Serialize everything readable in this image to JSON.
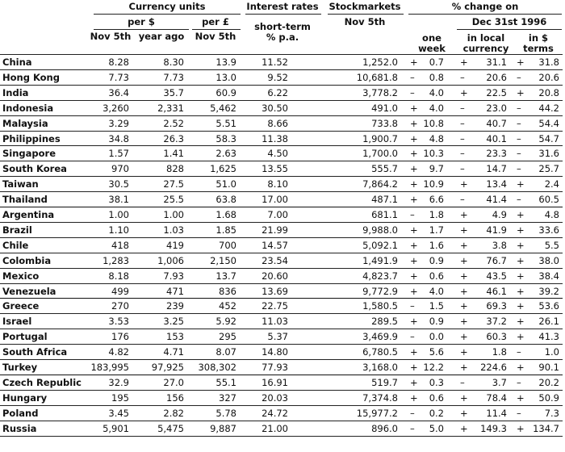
{
  "headers": {
    "currency_units": "Currency units",
    "per_dollar": "per $",
    "per_pound": "per £",
    "nov5": "Nov 5th",
    "year_ago": "year ago",
    "nov5_pound": "Nov 5th",
    "interest_rates": "Interest rates",
    "short_term": "short-term",
    "pct_pa": "% p.a.",
    "stockmarkets": "Stockmarkets",
    "stock_nov5": "Nov 5th",
    "pct_change_on": "% change on",
    "one": "one",
    "week": "week",
    "dec31": "Dec 31st 1996",
    "in_local": "in local",
    "currency": "currency",
    "in_dollar": "in $",
    "terms": "terms"
  },
  "rows": [
    {
      "name": "China",
      "nov5": "8.28",
      "year_ago": "8.30",
      "per_pound": "13.9",
      "rate": "11.52",
      "stock": "1,252.0",
      "wk_sign": "+",
      "wk": "0.7",
      "loc_sign": "+",
      "loc": "31.1",
      "usd_sign": "+",
      "usd": "31.8"
    },
    {
      "name": "Hong Kong",
      "nov5": "7.73",
      "year_ago": "7.73",
      "per_pound": "13.0",
      "rate": "9.52",
      "stock": "10,681.8",
      "wk_sign": "–",
      "wk": "0.8",
      "loc_sign": "–",
      "loc": "20.6",
      "usd_sign": "–",
      "usd": "20.6"
    },
    {
      "name": "India",
      "nov5": "36.4",
      "year_ago": "35.7",
      "per_pound": "60.9",
      "rate": "6.22",
      "stock": "3,778.2",
      "wk_sign": "–",
      "wk": "4.0",
      "loc_sign": "+",
      "loc": "22.5",
      "usd_sign": "+",
      "usd": "20.8"
    },
    {
      "name": "Indonesia",
      "nov5": "3,260",
      "year_ago": "2,331",
      "per_pound": "5,462",
      "rate": "30.50",
      "stock": "491.0",
      "wk_sign": "+",
      "wk": "4.0",
      "loc_sign": "–",
      "loc": "23.0",
      "usd_sign": "–",
      "usd": "44.2"
    },
    {
      "name": "Malaysia",
      "nov5": "3.29",
      "year_ago": "2.52",
      "per_pound": "5.51",
      "rate": "8.66",
      "stock": "733.8",
      "wk_sign": "+",
      "wk": "10.8",
      "loc_sign": "–",
      "loc": "40.7",
      "usd_sign": "–",
      "usd": "54.4"
    },
    {
      "name": "Philippines",
      "nov5": "34.8",
      "year_ago": "26.3",
      "per_pound": "58.3",
      "rate": "11.38",
      "stock": "1,900.7",
      "wk_sign": "+",
      "wk": "4.8",
      "loc_sign": "–",
      "loc": "40.1",
      "usd_sign": "–",
      "usd": "54.7"
    },
    {
      "name": "Singapore",
      "nov5": "1.57",
      "year_ago": "1.41",
      "per_pound": "2.63",
      "rate": "4.50",
      "stock": "1,700.0",
      "wk_sign": "+",
      "wk": "10.3",
      "loc_sign": "–",
      "loc": "23.3",
      "usd_sign": "–",
      "usd": "31.6"
    },
    {
      "name": "South Korea",
      "nov5": "970",
      "year_ago": "828",
      "per_pound": "1,625",
      "rate": "13.55",
      "stock": "555.7",
      "wk_sign": "+",
      "wk": "9.7",
      "loc_sign": "–",
      "loc": "14.7",
      "usd_sign": "–",
      "usd": "25.7"
    },
    {
      "name": "Taiwan",
      "nov5": "30.5",
      "year_ago": "27.5",
      "per_pound": "51.0",
      "rate": "8.10",
      "stock": "7,864.2",
      "wk_sign": "+",
      "wk": "10.9",
      "loc_sign": "+",
      "loc": "13.4",
      "usd_sign": "+",
      "usd": "2.4"
    },
    {
      "name": "Thailand",
      "nov5": "38.1",
      "year_ago": "25.5",
      "per_pound": "63.8",
      "rate": "17.00",
      "stock": "487.1",
      "wk_sign": "+",
      "wk": "6.6",
      "loc_sign": "–",
      "loc": "41.4",
      "usd_sign": "–",
      "usd": "60.5"
    },
    {
      "name": "Argentina",
      "nov5": "1.00",
      "year_ago": "1.00",
      "per_pound": "1.68",
      "rate": "7.00",
      "stock": "681.1",
      "wk_sign": "–",
      "wk": "1.8",
      "loc_sign": "+",
      "loc": "4.9",
      "usd_sign": "+",
      "usd": "4.8"
    },
    {
      "name": "Brazil",
      "nov5": "1.10",
      "year_ago": "1.03",
      "per_pound": "1.85",
      "rate": "21.99",
      "stock": "9,988.0",
      "wk_sign": "+",
      "wk": "1.7",
      "loc_sign": "+",
      "loc": "41.9",
      "usd_sign": "+",
      "usd": "33.6"
    },
    {
      "name": "Chile",
      "nov5": "418",
      "year_ago": "419",
      "per_pound": "700",
      "rate": "14.57",
      "stock": "5,092.1",
      "wk_sign": "+",
      "wk": "1.6",
      "loc_sign": "+",
      "loc": "3.8",
      "usd_sign": "+",
      "usd": "5.5"
    },
    {
      "name": "Colombia",
      "nov5": "1,283",
      "year_ago": "1,006",
      "per_pound": "2,150",
      "rate": "23.54",
      "stock": "1,491.9",
      "wk_sign": "+",
      "wk": "0.9",
      "loc_sign": "+",
      "loc": "76.7",
      "usd_sign": "+",
      "usd": "38.0"
    },
    {
      "name": "Mexico",
      "nov5": "8.18",
      "year_ago": "7.93",
      "per_pound": "13.7",
      "rate": "20.60",
      "stock": "4,823.7",
      "wk_sign": "+",
      "wk": "0.6",
      "loc_sign": "+",
      "loc": "43.5",
      "usd_sign": "+",
      "usd": "38.4"
    },
    {
      "name": "Venezuela",
      "nov5": "499",
      "year_ago": "471",
      "per_pound": "836",
      "rate": "13.69",
      "stock": "9,772.9",
      "wk_sign": "+",
      "wk": "4.0",
      "loc_sign": "+",
      "loc": "46.1",
      "usd_sign": "+",
      "usd": "39.2"
    },
    {
      "name": "Greece",
      "nov5": "270",
      "year_ago": "239",
      "per_pound": "452",
      "rate": "22.75",
      "stock": "1,580.5",
      "wk_sign": "–",
      "wk": "1.5",
      "loc_sign": "+",
      "loc": "69.3",
      "usd_sign": "+",
      "usd": "53.6"
    },
    {
      "name": "Israel",
      "nov5": "3.53",
      "year_ago": "3.25",
      "per_pound": "5.92",
      "rate": "11.03",
      "stock": "289.5",
      "wk_sign": "+",
      "wk": "0.9",
      "loc_sign": "+",
      "loc": "37.2",
      "usd_sign": "+",
      "usd": "26.1"
    },
    {
      "name": "Portugal",
      "nov5": "176",
      "year_ago": "153",
      "per_pound": "295",
      "rate": "5.37",
      "stock": "3,469.9",
      "wk_sign": "–",
      "wk": "0.0",
      "loc_sign": "+",
      "loc": "60.3",
      "usd_sign": "+",
      "usd": "41.3"
    },
    {
      "name": "South Africa",
      "nov5": "4.82",
      "year_ago": "4.71",
      "per_pound": "8.07",
      "rate": "14.80",
      "stock": "6,780.5",
      "wk_sign": "+",
      "wk": "5.6",
      "loc_sign": "+",
      "loc": "1.8",
      "usd_sign": "–",
      "usd": "1.0"
    },
    {
      "name": "Turkey",
      "nov5": "183,995",
      "year_ago": "97,925",
      "per_pound": "308,302",
      "rate": "77.93",
      "stock": "3,168.0",
      "wk_sign": "+",
      "wk": "12.2",
      "loc_sign": "+",
      "loc": "224.6",
      "usd_sign": "+",
      "usd": "90.1"
    },
    {
      "name": "Czech Republic",
      "nov5": "32.9",
      "year_ago": "27.0",
      "per_pound": "55.1",
      "rate": "16.91",
      "stock": "519.7",
      "wk_sign": "+",
      "wk": "0.3",
      "loc_sign": "–",
      "loc": "3.7",
      "usd_sign": "–",
      "usd": "20.2"
    },
    {
      "name": "Hungary",
      "nov5": "195",
      "year_ago": "156",
      "per_pound": "327",
      "rate": "20.03",
      "stock": "7,374.8",
      "wk_sign": "+",
      "wk": "0.6",
      "loc_sign": "+",
      "loc": "78.4",
      "usd_sign": "+",
      "usd": "50.9"
    },
    {
      "name": "Poland",
      "nov5": "3.45",
      "year_ago": "2.82",
      "per_pound": "5.78",
      "rate": "24.72",
      "stock": "15,977.2",
      "wk_sign": "–",
      "wk": "0.2",
      "loc_sign": "+",
      "loc": "11.4",
      "usd_sign": "–",
      "usd": "7.3"
    },
    {
      "name": "Russia",
      "nov5": "5,901",
      "year_ago": "5,475",
      "per_pound": "9,887",
      "rate": "21.00",
      "stock": "896.0",
      "wk_sign": "–",
      "wk": "5.0",
      "loc_sign": "+",
      "loc": "149.3",
      "usd_sign": "+",
      "usd": "134.7"
    }
  ]
}
